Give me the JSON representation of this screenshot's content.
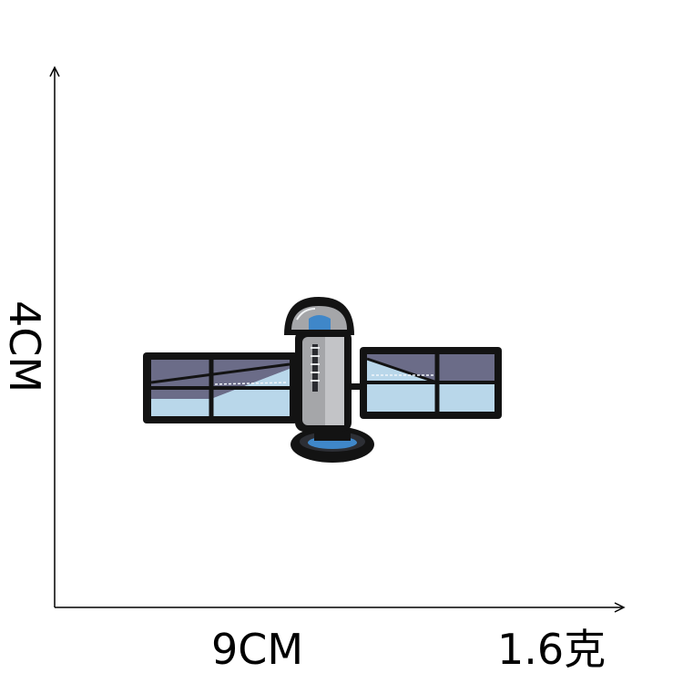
{
  "dimensions": {
    "height": "4CM",
    "width": "9CM",
    "weight": "1.6克"
  },
  "product": {
    "icon": "satellite-patch-icon"
  }
}
